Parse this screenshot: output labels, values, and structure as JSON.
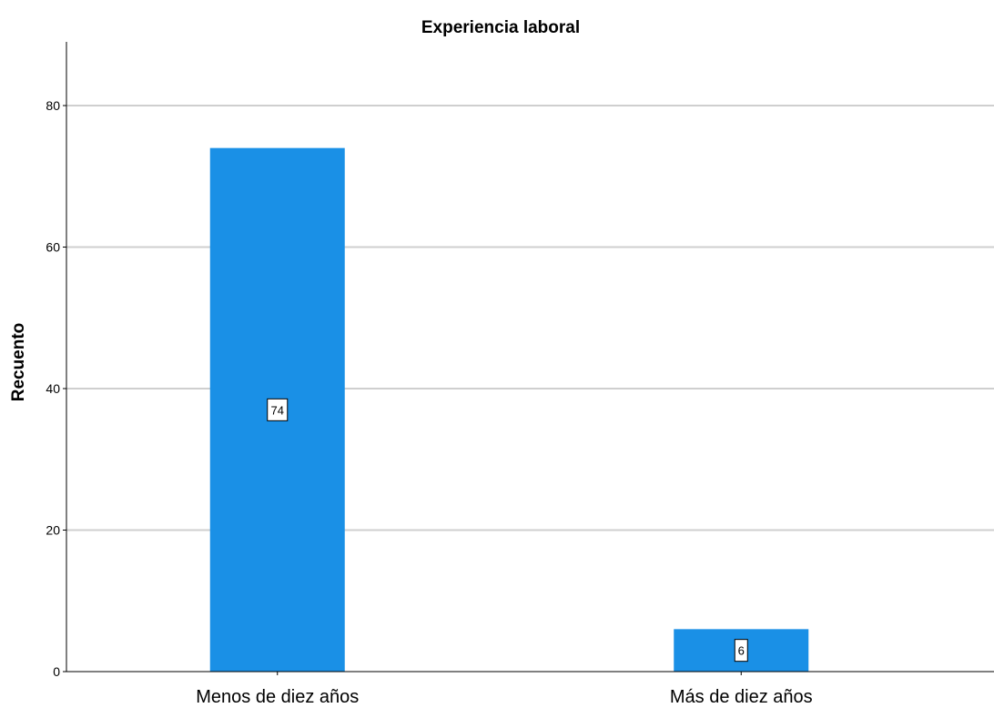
{
  "chart_data": {
    "type": "bar",
    "title": "Experiencia laboral",
    "xlabel": "",
    "ylabel": "Recuento",
    "categories": [
      "Menos de diez años",
      "Más de diez años"
    ],
    "values": [
      74,
      6
    ],
    "data_labels": [
      "74",
      "6"
    ],
    "yticks": [
      0,
      20,
      40,
      60,
      80
    ],
    "ylim": [
      0,
      88
    ],
    "grid": true,
    "bar_color": "#1a90e6"
  }
}
